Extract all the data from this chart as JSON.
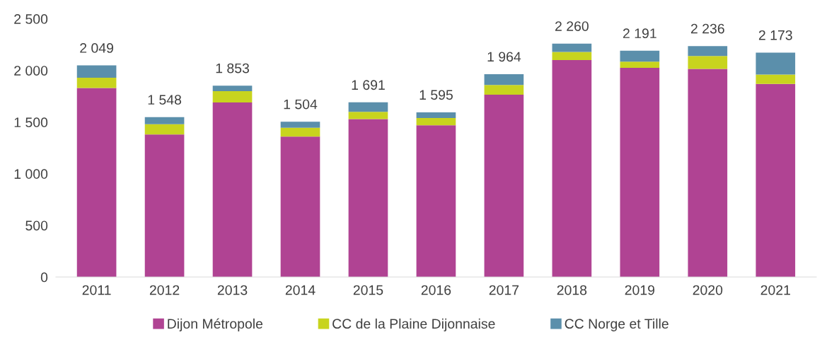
{
  "chart_data": {
    "type": "bar",
    "stacked": true,
    "categories": [
      "2011",
      "2012",
      "2013",
      "2014",
      "2015",
      "2016",
      "2017",
      "2018",
      "2019",
      "2020",
      "2021"
    ],
    "series": [
      {
        "name": "Dijon Métropole",
        "color": "#b04393",
        "values": [
          1830,
          1380,
          1690,
          1360,
          1530,
          1470,
          1765,
          2100,
          2025,
          2015,
          1870
        ]
      },
      {
        "name": "CC de la Plaine Dijonnaise",
        "color": "#c8d41e",
        "values": [
          100,
          100,
          110,
          85,
          70,
          70,
          95,
          80,
          60,
          125,
          90
        ]
      },
      {
        "name": "CC Norge et Tille",
        "color": "#5b8fab",
        "values": [
          119,
          68,
          53,
          59,
          91,
          55,
          104,
          80,
          106,
          96,
          213
        ]
      }
    ],
    "totals": [
      "2 049",
      "1 548",
      "1 853",
      "1 504",
      "1 691",
      "1 595",
      "1 964",
      "2 260",
      "2 191",
      "2 236",
      "2 173"
    ],
    "ylim": [
      0,
      2500
    ],
    "yticks": [
      0,
      500,
      {
        "value": 1000,
        "label": "1 000"
      },
      {
        "value": 1500,
        "label": "1 500"
      },
      {
        "value": 2000,
        "label": "2 000"
      },
      {
        "value": 2500,
        "label": "2 500"
      }
    ],
    "grid": false,
    "legend": "bottom"
  }
}
